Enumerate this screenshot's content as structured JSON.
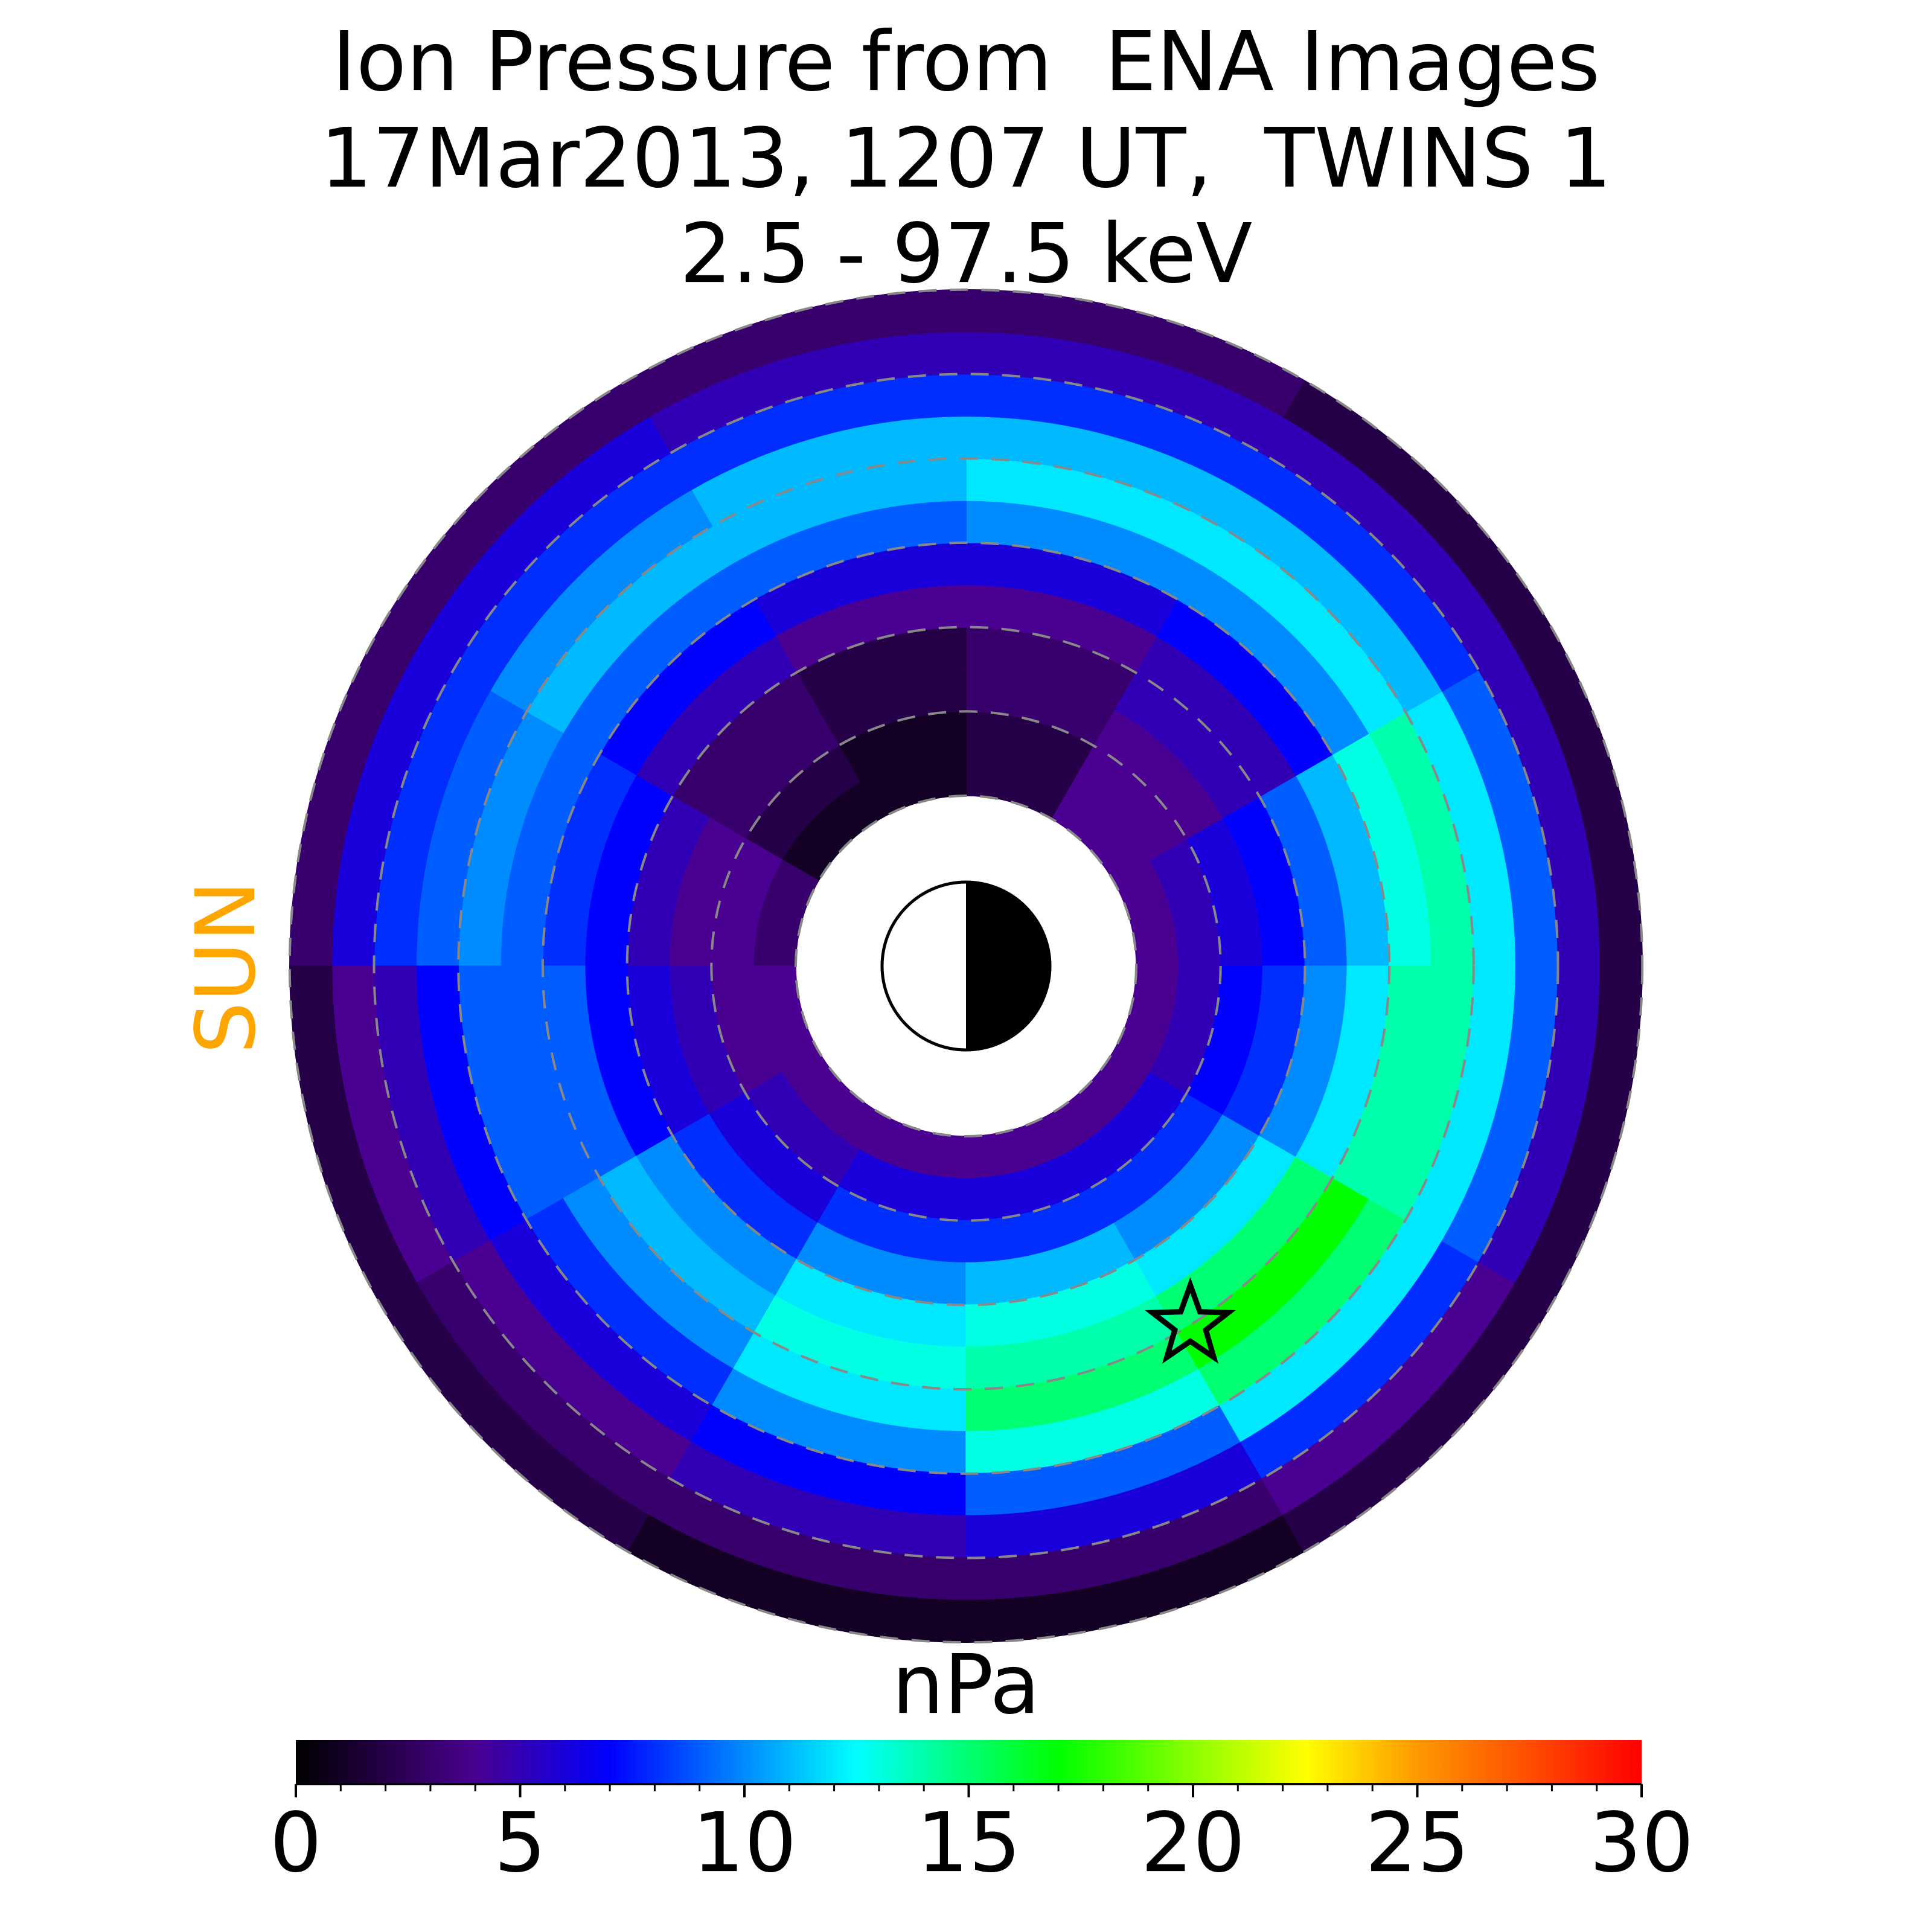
{
  "chart_data": {
    "type": "polar_heatmap",
    "title": [
      "Ion Pressure from  ENA Images",
      "17Mar2013, 1207 UT,  TWINS 1",
      "2.5 - 97.5 keV"
    ],
    "sun_label": "SUN",
    "colorbar_label": "nPa",
    "r_edges": [
      2,
      2.5,
      3,
      3.5,
      4,
      4.5,
      5,
      5.5,
      6,
      6.5,
      7,
      7.5,
      8
    ],
    "theta_edges": [
      0,
      30,
      60,
      90,
      120,
      150,
      180,
      210,
      240,
      270,
      300,
      330,
      360
    ],
    "values": [
      [
        4,
        4,
        2,
        1,
        1,
        3,
        4,
        4,
        4,
        4,
        4,
        4
      ],
      [
        5,
        4,
        2,
        1,
        2,
        4,
        4,
        5,
        6,
        6,
        6,
        5
      ],
      [
        6,
        4,
        3,
        2,
        3,
        4,
        5,
        6,
        8,
        8,
        8,
        7
      ],
      [
        7,
        5,
        3,
        2,
        3,
        5,
        6,
        8,
        10,
        11,
        10,
        8
      ],
      [
        9,
        5,
        4,
        4,
        5,
        7,
        7,
        10,
        12,
        13,
        12,
        10
      ],
      [
        11,
        7,
        6,
        6,
        7,
        8,
        9,
        11,
        13,
        14,
        15,
        12
      ],
      [
        13,
        10,
        10,
        9,
        9,
        9,
        9,
        10,
        12,
        15,
        17,
        14
      ],
      [
        14,
        12,
        12,
        11,
        11,
        10,
        9,
        8,
        10,
        13,
        15,
        14
      ],
      [
        12,
        11,
        11,
        11,
        10,
        9,
        7,
        6,
        7,
        9,
        12,
        12
      ],
      [
        9,
        8,
        8,
        8,
        8,
        8,
        5,
        4,
        5,
        6,
        8,
        9
      ],
      [
        5,
        5,
        5,
        5,
        6,
        6,
        4,
        3,
        3,
        3,
        4,
        5
      ],
      [
        2,
        2,
        3,
        3,
        3,
        3,
        2,
        2,
        1,
        1,
        2,
        2
      ]
    ],
    "rgrid": [
      2,
      3,
      4,
      5,
      6,
      7,
      8
    ],
    "marker": {
      "r": 5,
      "theta": 302
    },
    "clim": [
      0,
      30
    ],
    "cticks": [
      0,
      5,
      10,
      15,
      20,
      25,
      30
    ],
    "cticks_minor": [
      1,
      2,
      3,
      4,
      6,
      7,
      8,
      9,
      11,
      12,
      13,
      14,
      16,
      17,
      18,
      19,
      21,
      22,
      23,
      24,
      26,
      27,
      28,
      29
    ],
    "colormap": [
      {
        "value": 0,
        "color": "#000000"
      },
      {
        "value": 4,
        "color": "#4a0090"
      },
      {
        "value": 7,
        "color": "#0000ff"
      },
      {
        "value": 12.5,
        "color": "#00ffff"
      },
      {
        "value": 17,
        "color": "#00ff00"
      },
      {
        "value": 22.5,
        "color": "#ffff00"
      },
      {
        "value": 25,
        "color": "#ff9900"
      },
      {
        "value": 30,
        "color": "#ff0000"
      }
    ],
    "sun_color": "#ffa500"
  }
}
